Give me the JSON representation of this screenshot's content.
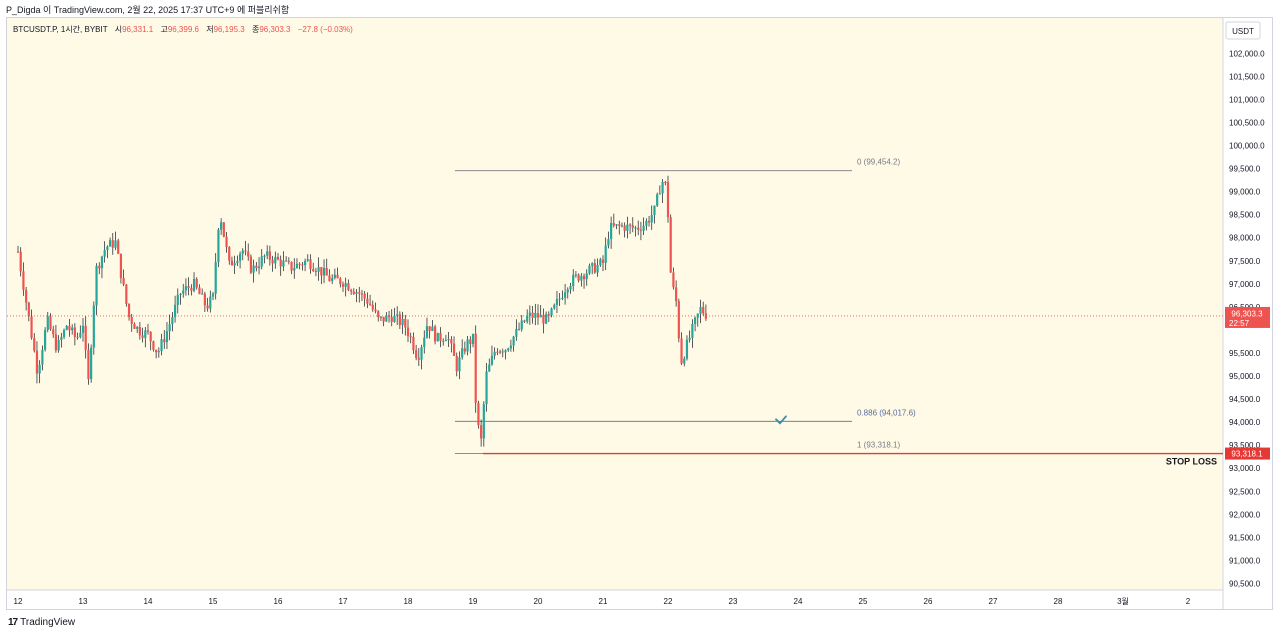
{
  "header": {
    "caption": "P_Digda 이 TradingView.com, 2월 22, 2025 17:37 UTC+9 에 퍼블리쉬함"
  },
  "legend": {
    "symbol": "BTCUSDT.P, 1시간, BYBIT",
    "open_label": "시",
    "open": "96,331.1",
    "high_label": "고",
    "high": "96,399.6",
    "low_label": "저",
    "low": "96,195.3",
    "close_label": "종",
    "close": "96,303.3",
    "change": "−27.8 (−0.03%)"
  },
  "price_axis": {
    "currency": "USDT",
    "labels": [
      "102,000.0",
      "101,500.0",
      "101,000.0",
      "100,500.0",
      "100,000.0",
      "99,500.0",
      "99,000.0",
      "98,500.0",
      "98,000.0",
      "97,500.0",
      "97,000.0",
      "96,500.0",
      "95,500.0",
      "95,000.0",
      "94,500.0",
      "94,000.0",
      "93,500.0",
      "93,000.0",
      "92,500.0",
      "92,000.0",
      "91,500.0",
      "91,000.0",
      "90,500.0"
    ],
    "current_price_label": "96,303.3",
    "countdown": "22:57",
    "stop_price_label": "93,318.1"
  },
  "time_axis": {
    "labels": [
      "12",
      "13",
      "14",
      "15",
      "16",
      "17",
      "18",
      "19",
      "20",
      "21",
      "22",
      "23",
      "24",
      "25",
      "26",
      "27",
      "28",
      "3월",
      "2"
    ]
  },
  "fib": {
    "levels": [
      {
        "label": "0 (99,454.2)",
        "price": 99454.2
      },
      {
        "label": "0.886 (94,017.6)",
        "price": 94017.6
      },
      {
        "label": "1 (93,318.1)",
        "price": 93318.1
      }
    ]
  },
  "annotations": {
    "stop_loss": "STOP LOSS"
  },
  "colors": {
    "background": "#fefae6",
    "up": "#26a69a",
    "down": "#ef5350",
    "wick": "#131722",
    "fib_line": "#787b86",
    "fib_886": "#5b6aa0",
    "stop_line": "#e53935",
    "check": "#3a8fa8"
  },
  "footer": {
    "brand": "TradingView"
  },
  "chart_data": {
    "type": "candlestick",
    "symbol": "BTCUSDT.P",
    "interval": "1시간",
    "exchange": "BYBIT",
    "currency": "USDT",
    "ylim": [
      90200,
      102500
    ],
    "x_ticks": [
      "12",
      "13",
      "14",
      "15",
      "16",
      "17",
      "18",
      "19",
      "20",
      "21",
      "22",
      "23",
      "24",
      "25",
      "26",
      "27",
      "28",
      "3월",
      "2"
    ],
    "series": [
      {
        "segment": "2월 12 → 2월 22 (hourly, digitized approx.)",
        "close_path": [
          [
            12.0,
            97700
          ],
          [
            12.15,
            96400
          ],
          [
            12.3,
            95100
          ],
          [
            12.45,
            96200
          ],
          [
            12.6,
            95600
          ],
          [
            12.75,
            96100
          ],
          [
            12.9,
            95800
          ],
          [
            13.0,
            96150
          ],
          [
            13.08,
            94800
          ],
          [
            13.2,
            97300
          ],
          [
            13.35,
            97800
          ],
          [
            13.5,
            97900
          ],
          [
            13.6,
            97100
          ],
          [
            13.7,
            96300
          ],
          [
            13.85,
            96000
          ],
          [
            14.0,
            95900
          ],
          [
            14.15,
            95500
          ],
          [
            14.3,
            96000
          ],
          [
            14.5,
            96800
          ],
          [
            14.7,
            97000
          ],
          [
            14.9,
            96500
          ],
          [
            15.0,
            96700
          ],
          [
            15.1,
            98600
          ],
          [
            15.25,
            97400
          ],
          [
            15.45,
            97750
          ],
          [
            15.6,
            97300
          ],
          [
            15.8,
            97600
          ],
          [
            16.0,
            97500
          ],
          [
            16.2,
            97350
          ],
          [
            16.45,
            97500
          ],
          [
            16.6,
            97350
          ],
          [
            16.8,
            97100
          ],
          [
            17.0,
            97050
          ],
          [
            17.25,
            96800
          ],
          [
            17.4,
            96600
          ],
          [
            17.55,
            96200
          ],
          [
            17.75,
            96300
          ],
          [
            17.95,
            96100
          ],
          [
            18.05,
            95800
          ],
          [
            18.15,
            95400
          ],
          [
            18.3,
            96150
          ],
          [
            18.45,
            95800
          ],
          [
            18.6,
            95900
          ],
          [
            18.75,
            95200
          ],
          [
            18.9,
            95700
          ],
          [
            19.0,
            95800
          ],
          [
            19.05,
            94200
          ],
          [
            19.12,
            93500
          ],
          [
            19.2,
            95000
          ],
          [
            19.35,
            95600
          ],
          [
            19.5,
            95600
          ],
          [
            19.7,
            96000
          ],
          [
            19.85,
            96300
          ],
          [
            20.0,
            96300
          ],
          [
            20.15,
            96200
          ],
          [
            20.3,
            96600
          ],
          [
            20.45,
            97000
          ],
          [
            20.6,
            97150
          ],
          [
            20.8,
            97300
          ],
          [
            21.0,
            97450
          ],
          [
            21.1,
            98200
          ],
          [
            21.3,
            98250
          ],
          [
            21.5,
            98200
          ],
          [
            21.65,
            98300
          ],
          [
            21.8,
            98600
          ],
          [
            21.9,
            99250
          ],
          [
            21.98,
            99100
          ],
          [
            22.05,
            97000
          ],
          [
            22.12,
            96700
          ],
          [
            22.2,
            95300
          ],
          [
            22.3,
            95700
          ],
          [
            22.4,
            96100
          ],
          [
            22.5,
            96450
          ],
          [
            22.62,
            96303.3
          ]
        ]
      }
    ],
    "last": {
      "open": 96331.1,
      "high": 96399.6,
      "low": 96195.3,
      "close": 96303.3,
      "change": -27.8,
      "change_pct": -0.03
    },
    "fib_levels": [
      {
        "ratio": 0,
        "price": 99454.2
      },
      {
        "ratio": 0.886,
        "price": 94017.6
      },
      {
        "ratio": 1,
        "price": 93318.1
      }
    ],
    "stop_loss": 93318.1
  }
}
